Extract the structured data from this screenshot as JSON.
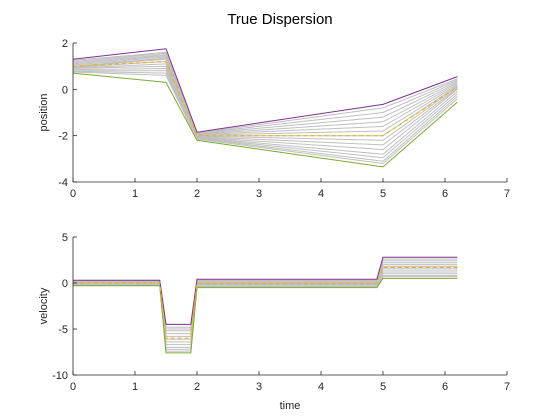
{
  "chart_data": [
    {
      "type": "line",
      "title": "True Dispersion",
      "xlabel": "",
      "ylabel": "position",
      "xlim": [
        0,
        7
      ],
      "ylim": [
        -4,
        2
      ],
      "xticks": [
        0,
        1,
        2,
        3,
        4,
        5,
        6,
        7
      ],
      "yticks": [
        -4,
        -2,
        0,
        2
      ],
      "grid": false,
      "colors": {
        "upper": "#7e2f8e",
        "lower": "#77ac30",
        "mean": "#edb120",
        "samples": "#bfbfbf"
      },
      "series": [
        {
          "role": "upper",
          "x": [
            0,
            1.5,
            2,
            5,
            6.2
          ],
          "values": [
            1.3,
            1.75,
            -1.85,
            -0.65,
            0.55
          ]
        },
        {
          "role": "lower",
          "x": [
            0,
            1.5,
            2,
            5,
            6.2
          ],
          "values": [
            0.7,
            0.3,
            -2.2,
            -3.35,
            -0.55
          ]
        },
        {
          "role": "mean",
          "dashed": true,
          "x": [
            0,
            1.5,
            2,
            5,
            6.2
          ],
          "values": [
            1.0,
            1.2,
            -2.0,
            -2.0,
            0.1
          ]
        }
      ],
      "samples": {
        "x": [
          0,
          1.5,
          2,
          5,
          6.2
        ],
        "values": [
          [
            1.25,
            1.6,
            -1.88,
            -0.8,
            0.45
          ],
          [
            1.2,
            1.55,
            -1.9,
            -1.0,
            0.4
          ],
          [
            1.15,
            1.5,
            -1.92,
            -1.2,
            0.35
          ],
          [
            1.1,
            1.45,
            -1.94,
            -1.4,
            0.3
          ],
          [
            1.05,
            1.4,
            -1.96,
            -1.6,
            0.25
          ],
          [
            1.0,
            1.35,
            -1.98,
            -1.8,
            0.2
          ],
          [
            0.98,
            1.3,
            -2.0,
            -2.0,
            0.15
          ],
          [
            0.95,
            1.2,
            -2.02,
            -2.2,
            0.1
          ],
          [
            0.92,
            1.1,
            -2.04,
            -2.4,
            0.05
          ],
          [
            0.9,
            1.0,
            -2.06,
            -2.6,
            0.0
          ],
          [
            0.85,
            0.9,
            -2.08,
            -2.8,
            -0.1
          ],
          [
            0.8,
            0.8,
            -2.1,
            -2.95,
            -0.2
          ],
          [
            0.78,
            0.7,
            -2.12,
            -3.1,
            -0.3
          ],
          [
            0.75,
            0.6,
            -2.15,
            -3.2,
            -0.4
          ]
        ]
      }
    },
    {
      "type": "line",
      "title": "",
      "xlabel": "time",
      "ylabel": "velocity",
      "xlim": [
        0,
        7
      ],
      "ylim": [
        -10,
        5
      ],
      "xticks": [
        0,
        1,
        2,
        3,
        4,
        5,
        6,
        7
      ],
      "yticks": [
        -10,
        -5,
        0,
        5
      ],
      "grid": false,
      "colors": {
        "upper": "#7e2f8e",
        "lower": "#77ac30",
        "mean": "#edb120",
        "samples": "#bfbfbf"
      },
      "series": [
        {
          "role": "upper",
          "x": [
            0,
            1.4,
            1.5,
            1.9,
            2,
            4.9,
            5,
            6.2
          ],
          "values": [
            0.3,
            0.3,
            -4.5,
            -4.5,
            0.4,
            0.4,
            2.8,
            2.8
          ]
        },
        {
          "role": "lower",
          "x": [
            0,
            1.4,
            1.5,
            1.9,
            2,
            4.9,
            5,
            6.2
          ],
          "values": [
            -0.3,
            -0.3,
            -7.6,
            -7.6,
            -0.5,
            -0.5,
            0.5,
            0.5
          ]
        },
        {
          "role": "mean",
          "dashed": true,
          "x": [
            0,
            1.4,
            1.5,
            1.9,
            2,
            4.9,
            5,
            6.2
          ],
          "values": [
            0,
            0,
            -6.0,
            -6.0,
            -0.05,
            -0.05,
            1.7,
            1.7
          ]
        }
      ],
      "samples": {
        "x": [
          0,
          1.4,
          1.5,
          1.9,
          2,
          4.9,
          5,
          6.2
        ],
        "values": [
          [
            0.25,
            0.25,
            -4.8,
            -4.8,
            0.3,
            0.3,
            2.6,
            2.6
          ],
          [
            0.2,
            0.2,
            -5.0,
            -5.0,
            0.25,
            0.25,
            2.4,
            2.4
          ],
          [
            0.15,
            0.15,
            -5.2,
            -5.2,
            0.2,
            0.2,
            2.2,
            2.2
          ],
          [
            0.1,
            0.1,
            -5.5,
            -5.5,
            0.1,
            0.1,
            2.0,
            2.0
          ],
          [
            0.05,
            0.05,
            -5.8,
            -5.8,
            0.0,
            0.0,
            1.8,
            1.8
          ],
          [
            0.0,
            0.0,
            -6.1,
            -6.1,
            -0.1,
            -0.1,
            1.6,
            1.6
          ],
          [
            -0.05,
            -0.05,
            -6.4,
            -6.4,
            -0.15,
            -0.15,
            1.4,
            1.4
          ],
          [
            -0.1,
            -0.1,
            -6.7,
            -6.7,
            -0.2,
            -0.2,
            1.2,
            1.2
          ],
          [
            -0.15,
            -0.15,
            -7.0,
            -7.0,
            -0.3,
            -0.3,
            1.0,
            1.0
          ],
          [
            -0.2,
            -0.2,
            -7.2,
            -7.2,
            -0.35,
            -0.35,
            0.8,
            0.8
          ],
          [
            -0.25,
            -0.25,
            -7.4,
            -7.4,
            -0.4,
            -0.4,
            0.7,
            0.7
          ]
        ]
      }
    }
  ]
}
